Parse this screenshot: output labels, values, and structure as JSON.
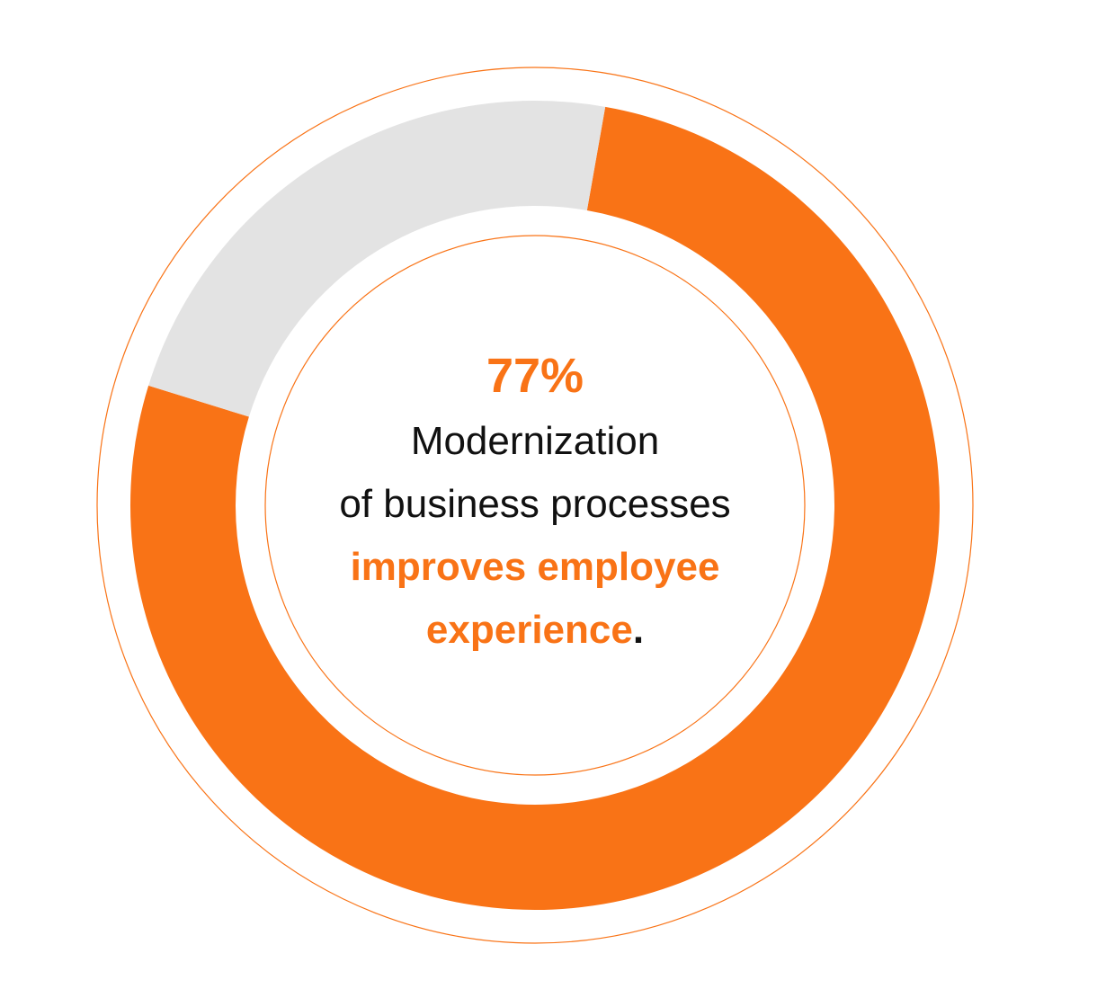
{
  "colors": {
    "accent": "#f97316",
    "track": "#e3e3e3",
    "text": "#111111",
    "outline": "#f97316"
  },
  "chart_data": {
    "type": "pie",
    "style": "donut",
    "values": [
      77,
      23
    ],
    "total": 100,
    "colors": [
      "#f97316",
      "#e3e3e3"
    ],
    "label": "77%",
    "legend": "none"
  },
  "text": {
    "percent": "77%",
    "line1": "Modernization",
    "line2": "of business processes",
    "line3": "improves employee",
    "line4_accent": "experience",
    "line4_period": "."
  }
}
